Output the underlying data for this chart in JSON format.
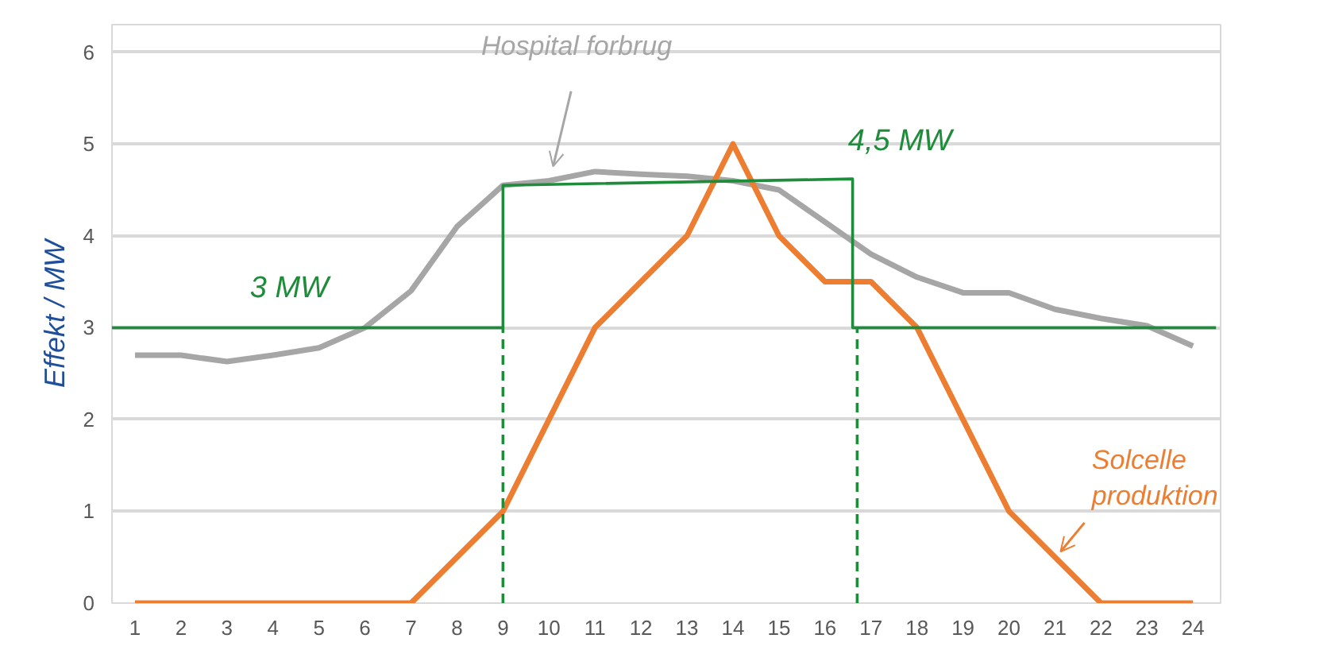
{
  "chart_data": {
    "type": "line",
    "ylabel": "Effekt / MW",
    "x": [
      1,
      2,
      3,
      4,
      5,
      6,
      7,
      8,
      9,
      10,
      11,
      12,
      13,
      14,
      15,
      16,
      17,
      18,
      19,
      20,
      21,
      22,
      23,
      24
    ],
    "series": [
      {
        "name": "Hospital forbrug",
        "color": "#a6a6a6",
        "values": [
          2.7,
          2.7,
          2.63,
          2.7,
          2.78,
          3.0,
          3.4,
          4.1,
          4.55,
          4.6,
          4.7,
          4.67,
          4.65,
          4.6,
          4.5,
          4.15,
          3.8,
          3.55,
          3.38,
          3.38,
          3.2,
          3.1,
          3.02,
          2.8
        ]
      },
      {
        "name": "Solcelle produktion",
        "color": "#ed7d31",
        "values": [
          0,
          0,
          0,
          0,
          0,
          0,
          0,
          0.5,
          1,
          2,
          3,
          3.5,
          4,
          5,
          4,
          3.5,
          3.5,
          3,
          2,
          1,
          0.5,
          0,
          0,
          0
        ]
      },
      {
        "color": "#1e8c3a",
        "x": [
          0.5,
          9,
          9,
          16.6,
          16.6,
          24.5
        ],
        "values": [
          3,
          3,
          4.55,
          4.62,
          3,
          3
        ]
      },
      {
        "color": "#1e8c3a",
        "x": [
          9,
          9
        ],
        "values": [
          0,
          3
        ],
        "line_style": "dashed"
      },
      {
        "color": "#1e8c3a",
        "x": [
          16.7,
          16.7
        ],
        "values": [
          0,
          3
        ],
        "line_style": "dashed"
      }
    ],
    "annotations": [
      {
        "text": "3 MW",
        "x": 3.5,
        "y": 3
      },
      {
        "text": "4,5 MW",
        "x": 16.5,
        "y": 4.6
      }
    ],
    "xlim": [
      0.5,
      24.6
    ],
    "ylim": [
      0,
      6.3
    ],
    "xticks": [
      1,
      2,
      3,
      4,
      5,
      6,
      7,
      8,
      9,
      10,
      11,
      12,
      13,
      14,
      15,
      16,
      17,
      18,
      19,
      20,
      21,
      22,
      23,
      24
    ],
    "yticks": [
      0,
      1,
      2,
      3,
      4,
      5,
      6
    ],
    "grid": "y",
    "legend": false,
    "marker": "none",
    "line_style": "solid"
  }
}
